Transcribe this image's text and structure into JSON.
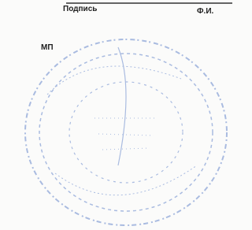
{
  "document": {
    "labels": {
      "signature": "Подпись",
      "name": "Ф.И.",
      "stamp_place": "МП"
    }
  }
}
